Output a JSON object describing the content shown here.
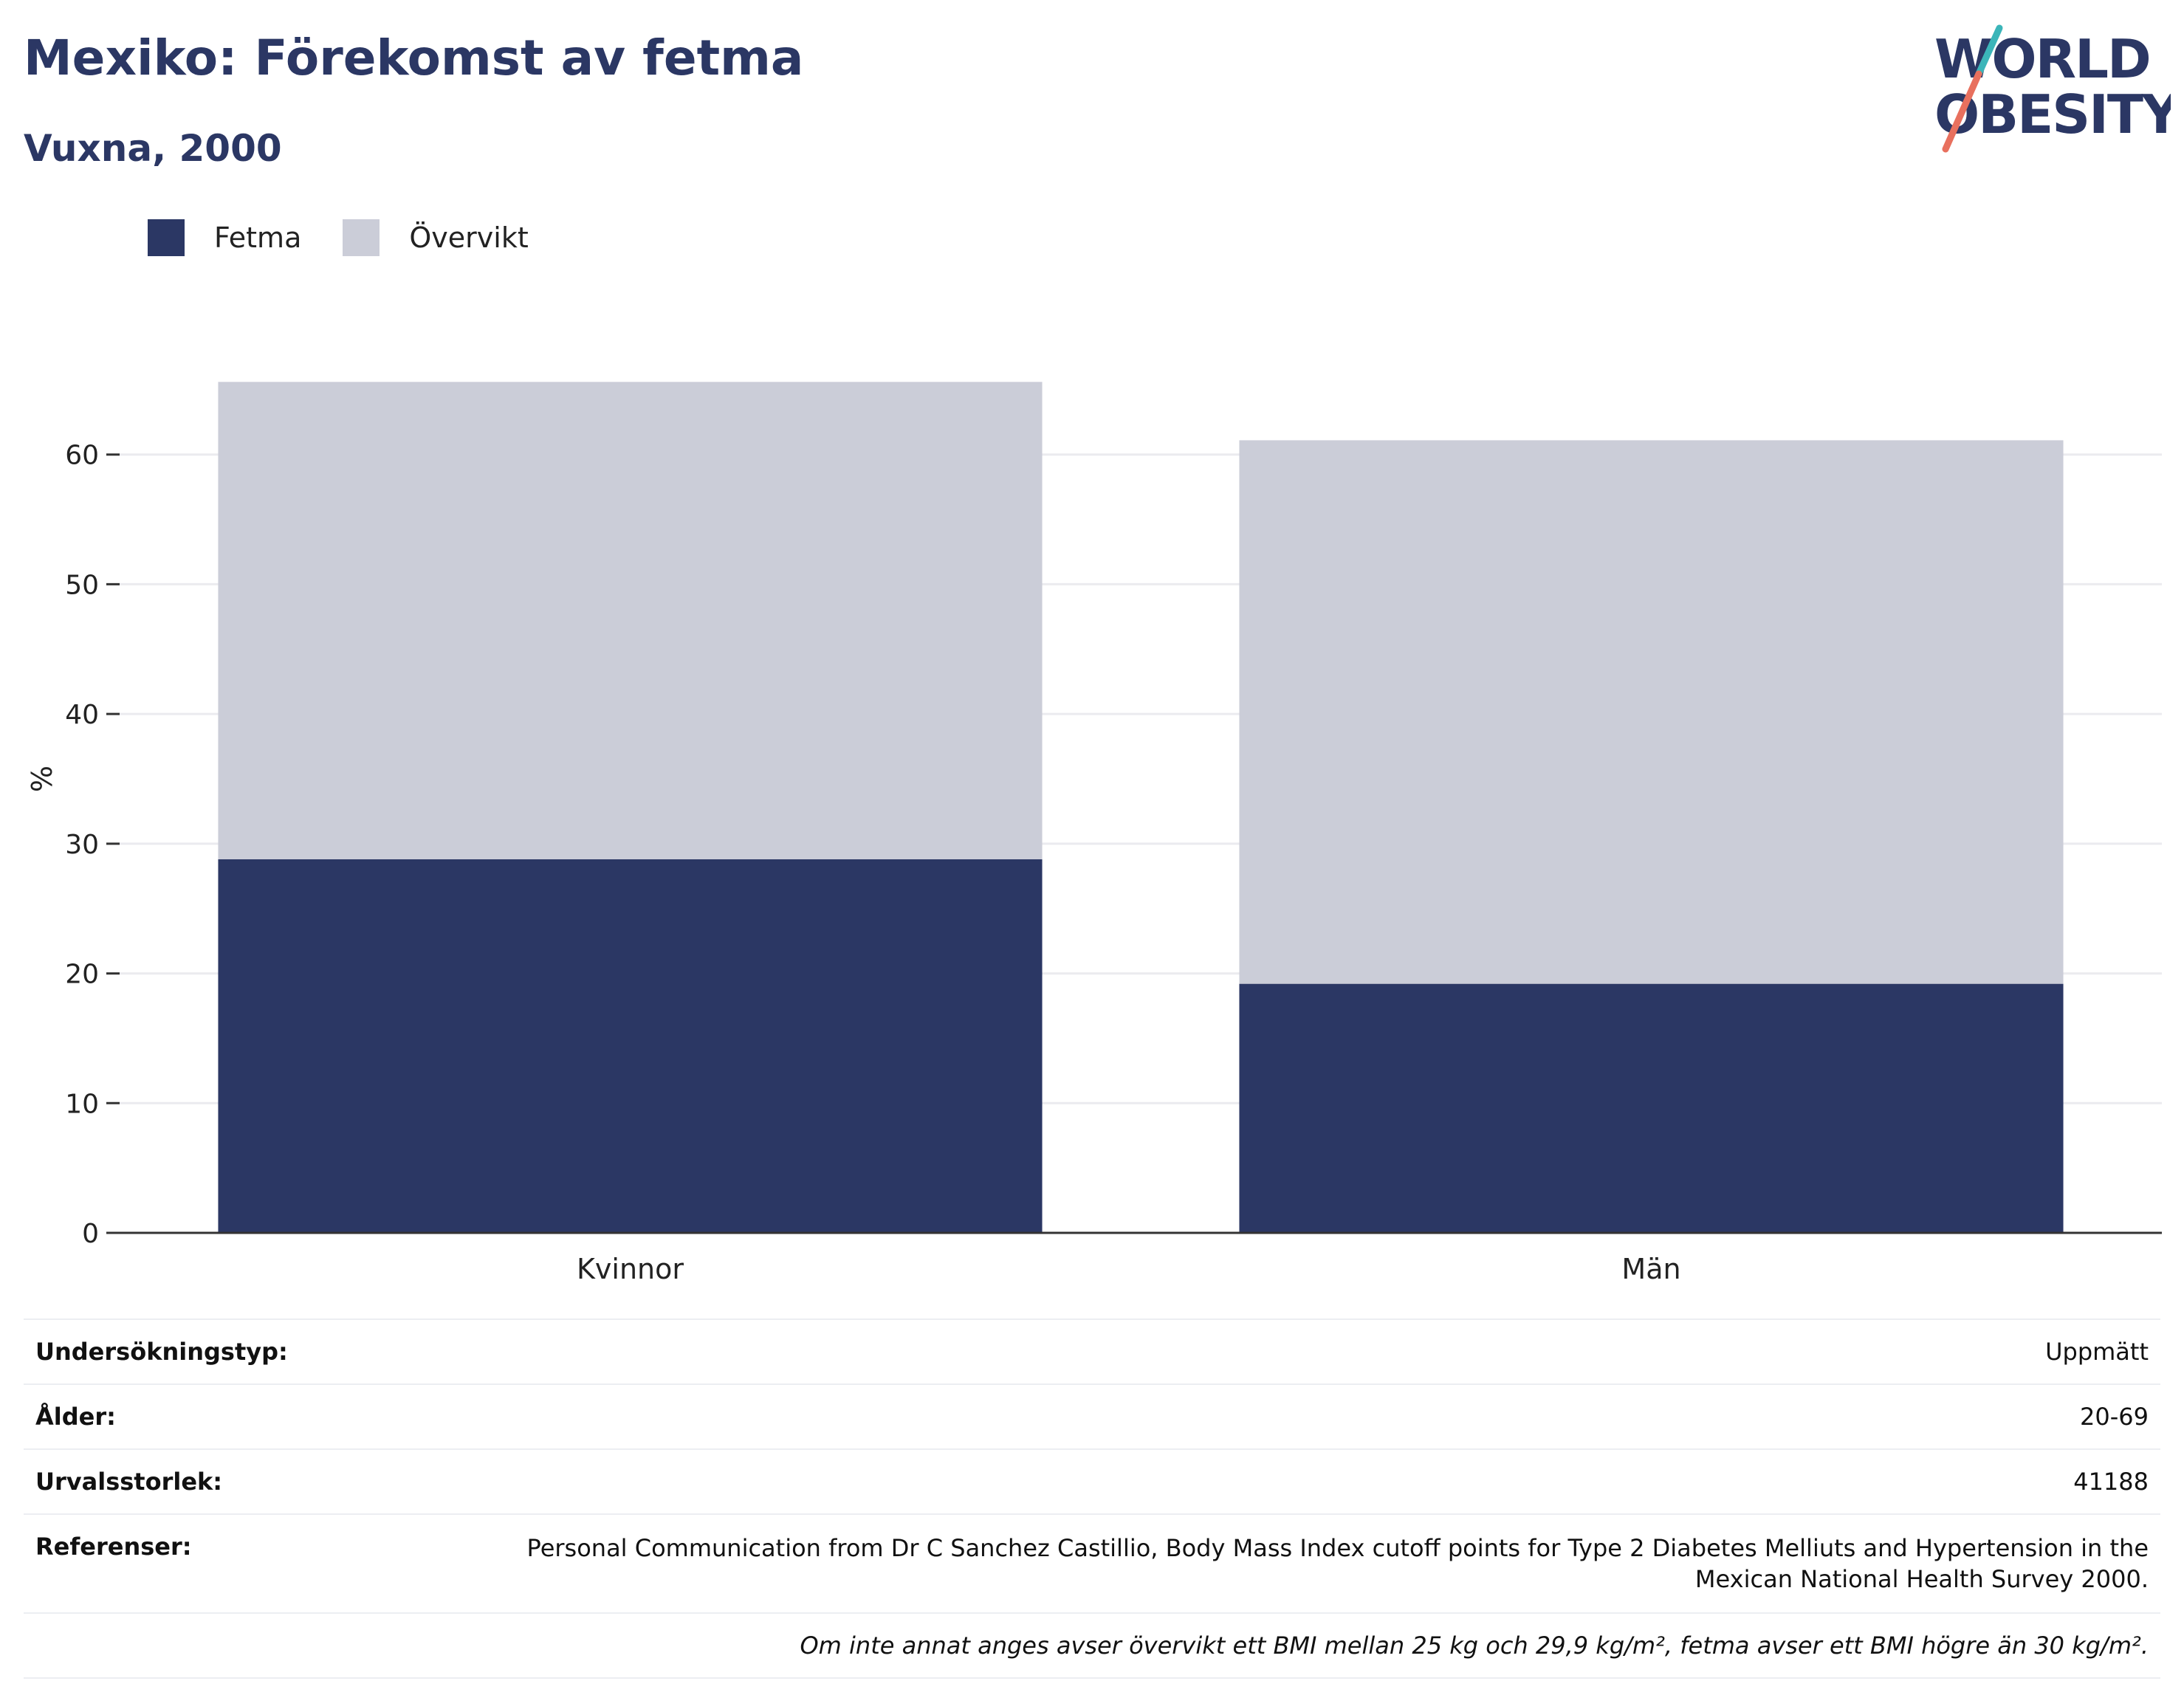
{
  "header": {
    "title": "Mexiko: Förekomst av fetma",
    "subtitle": "Vuxna, 2000"
  },
  "logo": {
    "line1": "WORLD",
    "line2": "OBESITY"
  },
  "colors": {
    "fetma": "#2b3764",
    "overvikt": "#cbcdd8",
    "text": "#2b3764",
    "slash_teal": "#3bb5b9",
    "slash_coral": "#e8705e"
  },
  "legend": {
    "items": [
      {
        "label": "Fetma"
      },
      {
        "label": "Övervikt"
      }
    ]
  },
  "chart_data": {
    "type": "bar",
    "stacked": true,
    "categories": [
      "Kvinnor",
      "Män"
    ],
    "series": [
      {
        "name": "Fetma",
        "values": [
          28.8,
          19.2
        ]
      },
      {
        "name": "Övervikt",
        "values": [
          36.8,
          41.9
        ]
      }
    ],
    "ylabel": "%",
    "ylim": [
      0,
      70
    ],
    "yticks": [
      0,
      10,
      20,
      30,
      40,
      50,
      60
    ],
    "grid": true,
    "legend_position": "top-left"
  },
  "info": {
    "rows": [
      {
        "key": "Undersökningstyp:",
        "value": "Uppmätt"
      },
      {
        "key": "Ålder:",
        "value": "20-69"
      },
      {
        "key": "Urvalsstorlek:",
        "value": "41188"
      },
      {
        "key": "Referenser:",
        "value": "Personal Communication from Dr C Sanchez Castillio, Body Mass Index cutoff points for Type 2 Diabetes Melliuts and Hypertension in the Mexican National Health Survey 2000."
      }
    ],
    "note": "Om inte annat anges avser övervikt ett BMI mellan 25 kg och 29,9 kg/m², fetma avser ett BMI högre än 30 kg/m²."
  }
}
